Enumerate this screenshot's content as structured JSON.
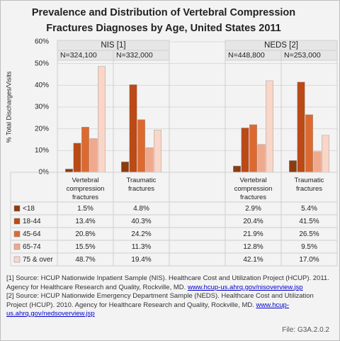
{
  "chart_data": {
    "type": "bar",
    "title": "Prevalence and Distribution of Vertebral Compression Fractures Diagnoses by Age, United States 2011",
    "y_label": "% Total Discharges/Visits",
    "categories": [
      "Vertebral compression fractures",
      "Traumatic fractures",
      null,
      "Vertebral compression fractures",
      "Traumatic fractures"
    ],
    "groups": [
      {
        "label": "NIS [1]",
        "n_labels": [
          "N=324,100",
          "N=332,000"
        ]
      },
      {
        "label": "NEDS [2]",
        "n_labels": [
          "N=448,800",
          "N=253,000"
        ]
      }
    ],
    "series": [
      {
        "name": "<18",
        "color": "#8e3b0e",
        "values": [
          1.5,
          4.8,
          null,
          2.9,
          5.4
        ],
        "value_labels": [
          "1.5%",
          "4.8%",
          null,
          "2.9%",
          "5.4%"
        ]
      },
      {
        "name": "18-44",
        "color": "#bb4a16",
        "values": [
          13.4,
          40.3,
          null,
          20.4,
          41.5
        ],
        "value_labels": [
          "13.4%",
          "40.3%",
          null,
          "20.4%",
          "41.5%"
        ]
      },
      {
        "name": "45-64",
        "color": "#dc6a30",
        "values": [
          20.8,
          24.2,
          null,
          21.9,
          26.5
        ],
        "value_labels": [
          "20.8%",
          "24.2%",
          null,
          "21.9%",
          "26.5%"
        ]
      },
      {
        "name": "65-74",
        "color": "#f0a98c",
        "values": [
          15.5,
          11.3,
          null,
          12.8,
          9.5
        ],
        "value_labels": [
          "15.5%",
          "11.3%",
          null,
          "12.8%",
          "9.5%"
        ]
      },
      {
        "name": "75 & over",
        "color": "#f9d6c8",
        "values": [
          48.7,
          19.4,
          null,
          42.1,
          17
        ],
        "value_labels": [
          "48.7%",
          "19.4%",
          null,
          "42.1%",
          "17.0%"
        ]
      }
    ],
    "ylim": [
      0,
      60
    ],
    "yticks": [
      {
        "value": 0,
        "label": "0%"
      },
      {
        "value": 10,
        "label": "10%"
      },
      {
        "value": 20,
        "label": "20%"
      },
      {
        "value": 30,
        "label": "30%"
      },
      {
        "value": 40,
        "label": "40%"
      },
      {
        "value": 50,
        "label": "50%"
      },
      {
        "value": 60,
        "label": "60%"
      }
    ],
    "grid": true,
    "footnotes": [
      {
        "text": "[1] Source: HCUP Nationwide Inpatient Sample (NIS). Healthcare Cost and Utilization Project (HCUP). 2011. Agency for Healthcare Research and Quality, Rockville, MD.",
        "link": "www.hcup-us.ahrq.gov/nisoverview.jsp"
      },
      {
        "text": "[2] Source: HCUP Nationwide Emergency Department Sample (NEDS). Healthcare Cost and Utilization Project (HCUP). 2010. Agency for Healthcare Research and Quality, Rockville, MD.",
        "link": "www.hcup-us.ahrq.gov/nedsoverview.jsp"
      }
    ],
    "file_label": "File: G3A.2.0.2"
  }
}
